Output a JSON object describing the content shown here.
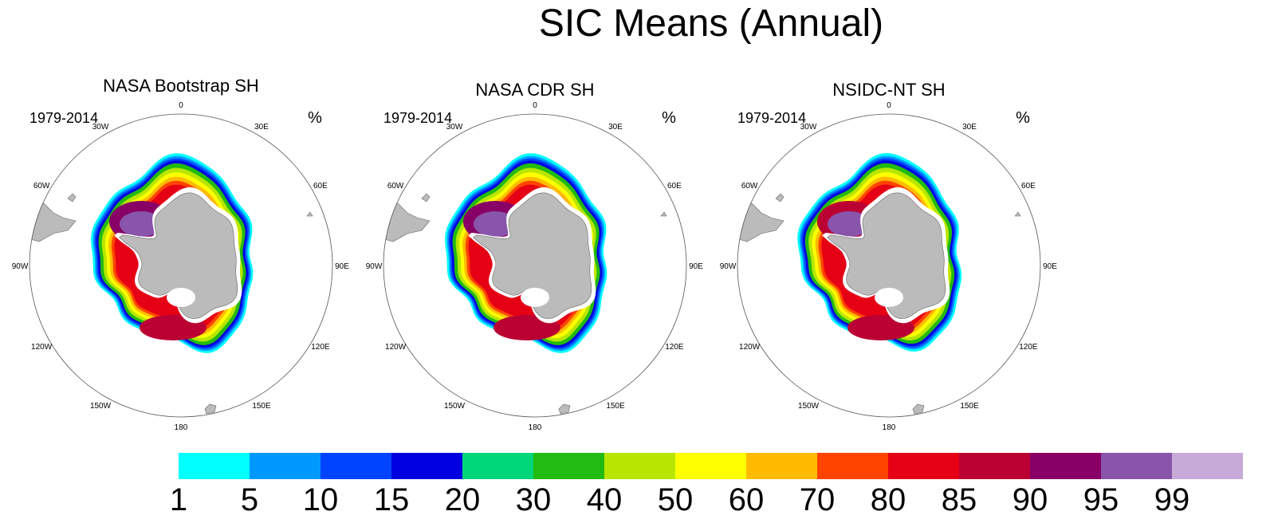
{
  "figure": {
    "title": "SIC Means (Annual)"
  },
  "panels": [
    {
      "title": "NASA Bootstrap SH",
      "period": "1979-2014",
      "unit": "%",
      "variant": "bootstrap"
    },
    {
      "title": "NASA CDR SH",
      "period": "1979-2014",
      "unit": "%",
      "variant": "cdr"
    },
    {
      "title": "NSIDC-NT SH",
      "period": "1979-2014",
      "unit": "%",
      "variant": "nt"
    }
  ],
  "longitude_labels": [
    "0",
    "30E",
    "60E",
    "90E",
    "120E",
    "150E",
    "180",
    "150W",
    "120W",
    "90W",
    "60W",
    "30W"
  ],
  "colorbar": {
    "labels": [
      "1",
      "5",
      "10",
      "15",
      "20",
      "30",
      "40",
      "50",
      "60",
      "70",
      "80",
      "85",
      "90",
      "95",
      "99"
    ],
    "colors": [
      "#00ffff",
      "#0099ff",
      "#0044ff",
      "#0000e0",
      "#00d67a",
      "#22bb11",
      "#b8e600",
      "#ffff00",
      "#ffbb00",
      "#ff4400",
      "#e60015",
      "#bb0033",
      "#880066",
      "#8855aa",
      "#c8aad8"
    ]
  },
  "colors": {
    "land": "#bbbbbb",
    "coast": "#666666",
    "boundary": "#555555"
  }
}
